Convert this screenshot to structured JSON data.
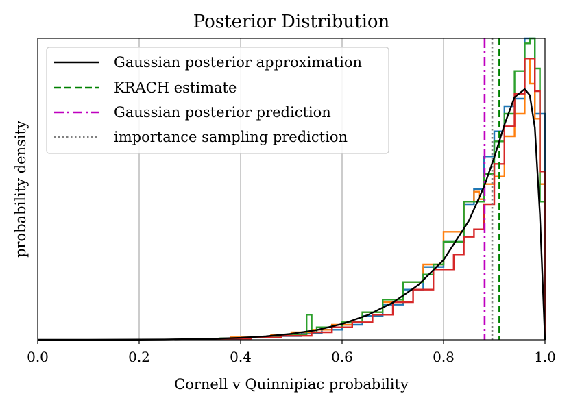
{
  "chart_data": {
    "type": "line",
    "title": "Posterior Distribution",
    "xlabel": "Cornell v Quinnipiac probability",
    "ylabel": "probability density",
    "xlim": [
      0.0,
      1.0
    ],
    "ylim": [
      0,
      12.0
    ],
    "xticks": [
      0.0,
      0.2,
      0.4,
      0.6,
      0.8,
      1.0
    ],
    "xtick_labels": [
      "0.0",
      "0.2",
      "0.4",
      "0.6",
      "0.8",
      "1.0"
    ],
    "yticks_shown": false,
    "grid": "vertical",
    "legend_position": "top-left",
    "legend": [
      {
        "label": "Gaussian posterior approximation",
        "style": "solid",
        "color": "#000000"
      },
      {
        "label": "KRACH estimate",
        "style": "dashed",
        "color": "#008000"
      },
      {
        "label": "Gaussian posterior prediction",
        "style": "dashdot",
        "color": "#bf00bf"
      },
      {
        "label": "importance sampling prediction",
        "style": "dotted",
        "color": "#808080"
      }
    ],
    "vertical_lines": [
      {
        "x": 0.91,
        "color": "#008000",
        "style": "dashed"
      },
      {
        "x": 0.881,
        "color": "#bf00bf",
        "style": "dashdot"
      },
      {
        "x": 0.896,
        "color": "#808080",
        "style": "dotted"
      }
    ],
    "curve": {
      "x": [
        0.0,
        0.05,
        0.1,
        0.15,
        0.2,
        0.25,
        0.3,
        0.35,
        0.4,
        0.45,
        0.5,
        0.55,
        0.6,
        0.65,
        0.7,
        0.75,
        0.8,
        0.85,
        0.88,
        0.9,
        0.92,
        0.94,
        0.96,
        0.97,
        0.98,
        0.99,
        1.0
      ],
      "y": [
        0.0,
        0.001,
        0.002,
        0.004,
        0.007,
        0.013,
        0.024,
        0.045,
        0.08,
        0.14,
        0.24,
        0.39,
        0.63,
        0.98,
        1.48,
        2.18,
        3.18,
        4.74,
        6.11,
        7.26,
        8.56,
        9.66,
        9.98,
        9.74,
        8.45,
        5.0,
        0.0
      ]
    },
    "histograms": [
      {
        "color": "#1f77b4",
        "edges": [
          0.3,
          0.34,
          0.4,
          0.44,
          0.48,
          0.52,
          0.56,
          0.6,
          0.64,
          0.68,
          0.72,
          0.76,
          0.8,
          0.84,
          0.86,
          0.88,
          0.9,
          0.92,
          0.94,
          0.96,
          0.98,
          1.0
        ],
        "y": [
          0.02,
          0.05,
          0.1,
          0.12,
          0.15,
          0.25,
          0.4,
          0.6,
          0.95,
          1.4,
          2.0,
          2.9,
          3.9,
          5.4,
          6.0,
          7.3,
          8.3,
          9.3,
          9.6,
          12.0,
          9.0
        ]
      },
      {
        "color": "#ff7f0e",
        "edges": [
          0.3,
          0.34,
          0.38,
          0.42,
          0.46,
          0.5,
          0.54,
          0.58,
          0.62,
          0.64,
          0.68,
          0.72,
          0.76,
          0.8,
          0.84,
          0.86,
          0.87,
          0.88,
          0.9,
          0.92,
          0.94,
          0.96,
          0.97,
          0.98,
          0.99,
          1.0
        ],
        "y": [
          0.03,
          0.05,
          0.1,
          0.12,
          0.2,
          0.3,
          0.4,
          0.6,
          0.7,
          1.1,
          1.5,
          2.3,
          3.0,
          4.3,
          5.5,
          5.9,
          5.6,
          6.2,
          6.5,
          8.1,
          9.0,
          11.2,
          10.2,
          8.8,
          6.2
        ]
      },
      {
        "color": "#2ca02c",
        "edges": [
          0.3,
          0.36,
          0.42,
          0.48,
          0.53,
          0.54,
          0.55,
          0.6,
          0.64,
          0.68,
          0.72,
          0.76,
          0.78,
          0.8,
          0.84,
          0.88,
          0.9,
          0.92,
          0.94,
          0.96,
          0.97,
          0.98,
          0.99,
          1.0
        ],
        "y": [
          0.03,
          0.06,
          0.1,
          0.2,
          1.0,
          0.3,
          0.5,
          0.7,
          1.1,
          1.6,
          2.3,
          2.6,
          3.0,
          3.9,
          5.5,
          6.6,
          7.9,
          9.0,
          10.7,
          11.8,
          12.0,
          10.8,
          5.5
        ]
      },
      {
        "color": "#d62728",
        "edges": [
          0.3,
          0.36,
          0.42,
          0.48,
          0.54,
          0.58,
          0.62,
          0.66,
          0.7,
          0.74,
          0.78,
          0.82,
          0.84,
          0.86,
          0.88,
          0.9,
          0.92,
          0.94,
          0.96,
          0.98,
          0.99,
          1.0
        ],
        "y": [
          0.02,
          0.05,
          0.09,
          0.16,
          0.3,
          0.5,
          0.7,
          1.0,
          1.5,
          2.0,
          2.8,
          3.4,
          4.1,
          4.4,
          5.4,
          7.0,
          8.5,
          9.8,
          11.2,
          9.9,
          6.7
        ]
      }
    ]
  }
}
